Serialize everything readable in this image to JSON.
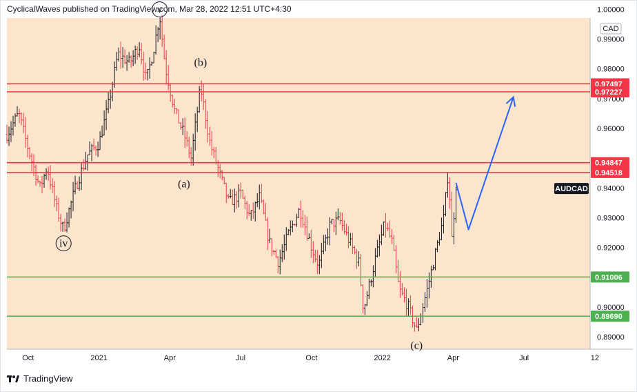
{
  "header": {
    "published_text": "CyclicalWaves published on TradingView.com, Mar 28, 2022 12:51 UTC+4:30"
  },
  "footer": {
    "brand": "TradingView",
    "logo_icon": "tradingview-logo-icon"
  },
  "chart_data": {
    "type": "ohlc",
    "symbol": "AUDCAD",
    "currency": "CAD",
    "ylim": [
      0.8858,
      0.9971
    ],
    "y_ticks": [
      "0.99000",
      "0.98000",
      "0.97000",
      "0.96000",
      "0.94000",
      "0.93000",
      "0.92000",
      "0.90000",
      "0.89000"
    ],
    "y_top_label_partial": "1.00000",
    "x_ticks": [
      {
        "label": "Oct",
        "x": 0
      },
      {
        "label": "2021",
        "x": 3
      },
      {
        "label": "Apr",
        "x": 6
      },
      {
        "label": "Jul",
        "x": 9
      },
      {
        "label": "Oct",
        "x": 12
      },
      {
        "label": "2022",
        "x": 15
      },
      {
        "label": "Apr",
        "x": 18
      },
      {
        "label": "Jul",
        "x": 21
      },
      {
        "label": "12",
        "x": 24
      }
    ],
    "x_range": [
      -0.9,
      23.8
    ],
    "horizontal_levels": [
      {
        "value": 0.97497,
        "label": "0.97497",
        "color": "#f23645"
      },
      {
        "value": 0.97227,
        "label": "0.97227",
        "color": "#f23645"
      },
      {
        "value": 0.94847,
        "label": "0.94847",
        "color": "#f23645"
      },
      {
        "value": 0.94518,
        "label": "0.94518",
        "color": "#f23645"
      },
      {
        "value": 0.91006,
        "label": "0.91006",
        "color": "#4caf50"
      },
      {
        "value": 0.8969,
        "label": "0.89690",
        "color": "#4caf50"
      }
    ],
    "current_price_label": "AUDCAD",
    "current_price_value": 0.9405,
    "wave_labels": [
      {
        "text": "v",
        "circled": true,
        "x": 5.57,
        "y": 0.9988
      },
      {
        "text": "(b)",
        "x": 7.3,
        "y": 0.981
      },
      {
        "text": "(a)",
        "x": 6.6,
        "y": 0.9402
      },
      {
        "text": "iv",
        "circled": true,
        "x": 1.5,
        "y": 0.9202
      },
      {
        "text": "(c)",
        "x": 16.45,
        "y": 0.8859
      }
    ],
    "projection_path": [
      {
        "x": 18.12,
        "y": 0.9417
      },
      {
        "x": 18.65,
        "y": 0.926
      },
      {
        "x": 20.55,
        "y": 0.9705
      }
    ],
    "projection_color": "#2962ff",
    "price_path": [
      {
        "x": -0.9,
        "y": 0.958
      },
      {
        "x": -0.4,
        "y": 0.965
      },
      {
        "x": 0.0,
        "y": 0.953
      },
      {
        "x": 0.5,
        "y": 0.94
      },
      {
        "x": 0.8,
        "y": 0.947
      },
      {
        "x": 1.2,
        "y": 0.933
      },
      {
        "x": 1.5,
        "y": 0.926
      },
      {
        "x": 2.0,
        "y": 0.94
      },
      {
        "x": 2.5,
        "y": 0.951
      },
      {
        "x": 3.0,
        "y": 0.955
      },
      {
        "x": 3.4,
        "y": 0.968
      },
      {
        "x": 3.8,
        "y": 0.985
      },
      {
        "x": 4.3,
        "y": 0.982
      },
      {
        "x": 4.7,
        "y": 0.988
      },
      {
        "x": 5.0,
        "y": 0.976
      },
      {
        "x": 5.3,
        "y": 0.986
      },
      {
        "x": 5.57,
        "y": 0.998
      },
      {
        "x": 5.8,
        "y": 0.981
      },
      {
        "x": 6.2,
        "y": 0.966
      },
      {
        "x": 6.6,
        "y": 0.958
      },
      {
        "x": 6.9,
        "y": 0.95
      },
      {
        "x": 7.3,
        "y": 0.974
      },
      {
        "x": 7.7,
        "y": 0.955
      },
      {
        "x": 8.1,
        "y": 0.945
      },
      {
        "x": 8.5,
        "y": 0.935
      },
      {
        "x": 9.0,
        "y": 0.938
      },
      {
        "x": 9.4,
        "y": 0.93
      },
      {
        "x": 9.8,
        "y": 0.937
      },
      {
        "x": 10.2,
        "y": 0.922
      },
      {
        "x": 10.6,
        "y": 0.915
      },
      {
        "x": 11.0,
        "y": 0.924
      },
      {
        "x": 11.5,
        "y": 0.933
      },
      {
        "x": 12.0,
        "y": 0.92
      },
      {
        "x": 12.3,
        "y": 0.914
      },
      {
        "x": 12.8,
        "y": 0.928
      },
      {
        "x": 13.2,
        "y": 0.929
      },
      {
        "x": 13.6,
        "y": 0.922
      },
      {
        "x": 14.0,
        "y": 0.915
      },
      {
        "x": 14.2,
        "y": 0.899
      },
      {
        "x": 14.7,
        "y": 0.916
      },
      {
        "x": 15.1,
        "y": 0.928
      },
      {
        "x": 15.4,
        "y": 0.922
      },
      {
        "x": 15.7,
        "y": 0.906
      },
      {
        "x": 16.1,
        "y": 0.9
      },
      {
        "x": 16.45,
        "y": 0.892
      },
      {
        "x": 16.9,
        "y": 0.906
      },
      {
        "x": 17.3,
        "y": 0.92
      },
      {
        "x": 17.6,
        "y": 0.93
      },
      {
        "x": 17.8,
        "y": 0.946
      },
      {
        "x": 17.95,
        "y": 0.922
      },
      {
        "x": 18.12,
        "y": 0.941
      }
    ]
  }
}
